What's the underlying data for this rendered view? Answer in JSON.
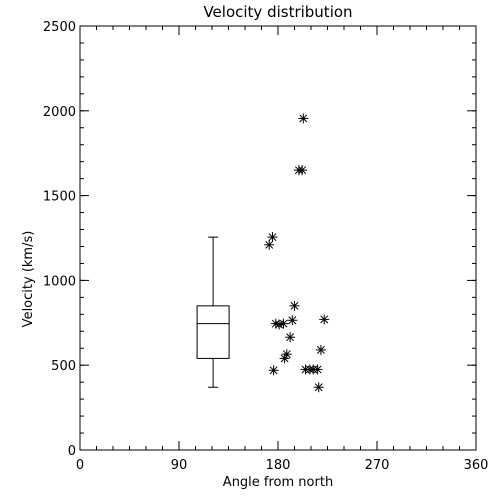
{
  "chart_data": {
    "type": "scatter",
    "title": "Velocity distribution",
    "xlabel": "Angle from north",
    "ylabel": "Velocity (km/s)",
    "xlim": [
      0,
      360
    ],
    "ylim": [
      0,
      2500
    ],
    "xticks": [
      0,
      90,
      180,
      270,
      360
    ],
    "yticks": [
      0,
      500,
      1000,
      1500,
      2000,
      2500
    ],
    "xtick_labels": [
      "0",
      "90",
      "180",
      "270",
      "360"
    ],
    "ytick_labels": [
      "0",
      "500",
      "1000",
      "1500",
      "2000",
      "2500"
    ],
    "boxplot": {
      "x": 121,
      "min": 370,
      "q1": 540,
      "median": 745,
      "q3": 850,
      "max": 1255
    },
    "points": [
      {
        "x": 175,
        "y": 1255
      },
      {
        "x": 172,
        "y": 1210
      },
      {
        "x": 203,
        "y": 1955
      },
      {
        "x": 199,
        "y": 1650
      },
      {
        "x": 202,
        "y": 1650
      },
      {
        "x": 195,
        "y": 850
      },
      {
        "x": 178,
        "y": 745
      },
      {
        "x": 181,
        "y": 740
      },
      {
        "x": 185,
        "y": 745
      },
      {
        "x": 193,
        "y": 765
      },
      {
        "x": 222,
        "y": 770
      },
      {
        "x": 191,
        "y": 665
      },
      {
        "x": 188,
        "y": 565
      },
      {
        "x": 186,
        "y": 540
      },
      {
        "x": 219,
        "y": 590
      },
      {
        "x": 176,
        "y": 470
      },
      {
        "x": 205,
        "y": 475
      },
      {
        "x": 209,
        "y": 475
      },
      {
        "x": 212,
        "y": 475
      },
      {
        "x": 216,
        "y": 475
      },
      {
        "x": 217,
        "y": 370
      }
    ]
  }
}
